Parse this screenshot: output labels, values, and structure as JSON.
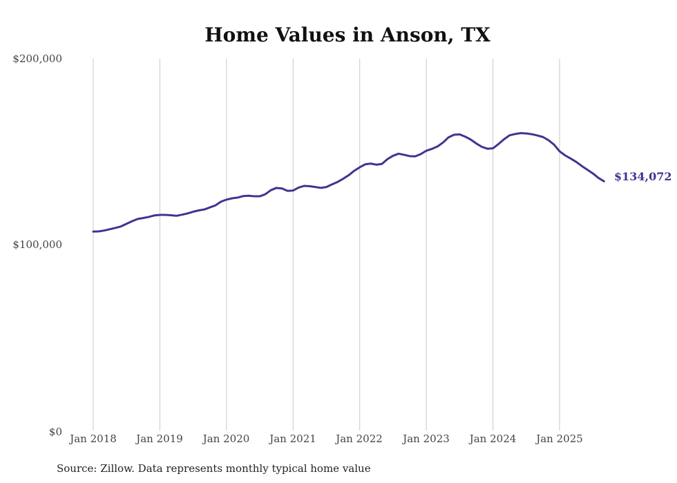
{
  "chart_data": {
    "type": "line",
    "title": "Home Values in Anson, TX",
    "xlabel": "",
    "ylabel": "",
    "ylim": [
      0,
      200000
    ],
    "yticks": [
      {
        "value": 0,
        "label": "$0"
      },
      {
        "value": 100000,
        "label": "$100,000"
      },
      {
        "value": 200000,
        "label": "$200,000"
      }
    ],
    "xlim": [
      2018.0,
      2025.667
    ],
    "xticks": [
      {
        "value": 2018,
        "label": "Jan 2018"
      },
      {
        "value": 2019,
        "label": "Jan 2019"
      },
      {
        "value": 2020,
        "label": "Jan 2020"
      },
      {
        "value": 2021,
        "label": "Jan 2021"
      },
      {
        "value": 2022,
        "label": "Jan 2022"
      },
      {
        "value": 2023,
        "label": "Jan 2023"
      },
      {
        "value": 2024,
        "label": "Jan 2024"
      },
      {
        "value": 2025,
        "label": "Jan 2025"
      }
    ],
    "vertical_grid": true,
    "series": [
      {
        "name": "Typical home value",
        "color": "#3d3591",
        "end_label": "$134,072",
        "x": [
          2018.0,
          2018.083,
          2018.167,
          2018.25,
          2018.333,
          2018.417,
          2018.5,
          2018.583,
          2018.667,
          2018.75,
          2018.833,
          2018.917,
          2019.0,
          2019.083,
          2019.167,
          2019.25,
          2019.333,
          2019.417,
          2019.5,
          2019.583,
          2019.667,
          2019.75,
          2019.833,
          2019.917,
          2020.0,
          2020.083,
          2020.167,
          2020.25,
          2020.333,
          2020.417,
          2020.5,
          2020.583,
          2020.667,
          2020.75,
          2020.833,
          2020.917,
          2021.0,
          2021.083,
          2021.167,
          2021.25,
          2021.333,
          2021.417,
          2021.5,
          2021.583,
          2021.667,
          2021.75,
          2021.833,
          2021.917,
          2022.0,
          2022.083,
          2022.167,
          2022.25,
          2022.333,
          2022.417,
          2022.5,
          2022.583,
          2022.667,
          2022.75,
          2022.833,
          2022.917,
          2023.0,
          2023.083,
          2023.167,
          2023.25,
          2023.333,
          2023.417,
          2023.5,
          2023.583,
          2023.667,
          2023.75,
          2023.833,
          2023.917,
          2024.0,
          2024.083,
          2024.167,
          2024.25,
          2024.333,
          2024.417,
          2024.5,
          2024.583,
          2024.667,
          2024.75,
          2024.833,
          2024.917,
          2025.0,
          2025.083,
          2025.167,
          2025.25,
          2025.333,
          2025.417,
          2025.5,
          2025.583,
          2025.667
        ],
        "values": [
          107000,
          107100,
          107600,
          108300,
          109000,
          109800,
          111200,
          112600,
          113800,
          114300,
          114900,
          115700,
          116000,
          116000,
          115800,
          115500,
          116100,
          116800,
          117700,
          118400,
          118900,
          120000,
          121100,
          123100,
          124200,
          124900,
          125300,
          126100,
          126300,
          126000,
          126000,
          127100,
          129300,
          130500,
          130200,
          128900,
          129100,
          130700,
          131600,
          131400,
          131000,
          130500,
          131000,
          132400,
          133700,
          135400,
          137300,
          139700,
          141600,
          143200,
          143600,
          143000,
          143400,
          146000,
          147800,
          148900,
          148300,
          147600,
          147500,
          148700,
          150500,
          151500,
          152800,
          154900,
          157700,
          159100,
          159300,
          158100,
          156500,
          154400,
          152600,
          151600,
          151800,
          154100,
          156700,
          158800,
          159500,
          160000,
          159800,
          159400,
          158700,
          157900,
          156200,
          153800,
          150200,
          148000,
          146300,
          144500,
          142300,
          140300,
          138300,
          135900,
          134072
        ]
      }
    ]
  },
  "footer": {
    "source": "Source: Zillow. Data represents monthly typical home value"
  }
}
